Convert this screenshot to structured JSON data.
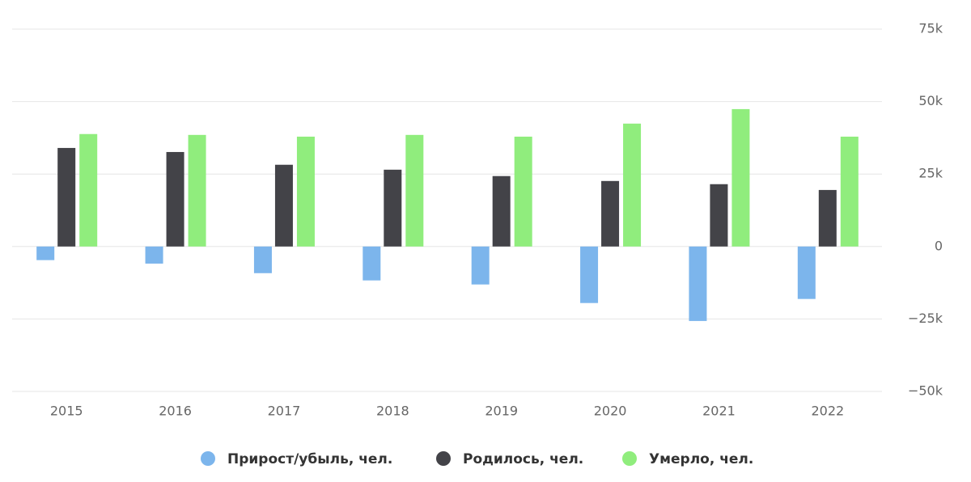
{
  "chart_data": {
    "type": "bar",
    "categories": [
      "2015",
      "2016",
      "2017",
      "2018",
      "2019",
      "2020",
      "2021",
      "2022"
    ],
    "series": [
      {
        "name": "Прирост/убыль, чел.",
        "color": "#7cb5ec",
        "values": [
          -4700,
          -5900,
          -9200,
          -11700,
          -13100,
          -19500,
          -25700,
          -18100
        ]
      },
      {
        "name": "Родилось, чел.",
        "color": "#434348",
        "values": [
          34000,
          32600,
          28200,
          26500,
          24300,
          22600,
          21500,
          19500
        ]
      },
      {
        "name": "Умерло, чел.",
        "color": "#90ed7d",
        "values": [
          38800,
          38500,
          37900,
          38500,
          37900,
          42400,
          47400,
          37900
        ]
      }
    ],
    "ylim": [
      -50000,
      75000
    ],
    "yticks": [
      {
        "value": -50000,
        "label": "−50k"
      },
      {
        "value": -25000,
        "label": "−25k"
      },
      0,
      {
        "value": 25000,
        "label": "25k"
      },
      {
        "value": 50000,
        "label": "50k"
      },
      {
        "value": 75000,
        "label": "75k"
      }
    ],
    "grid": true
  }
}
